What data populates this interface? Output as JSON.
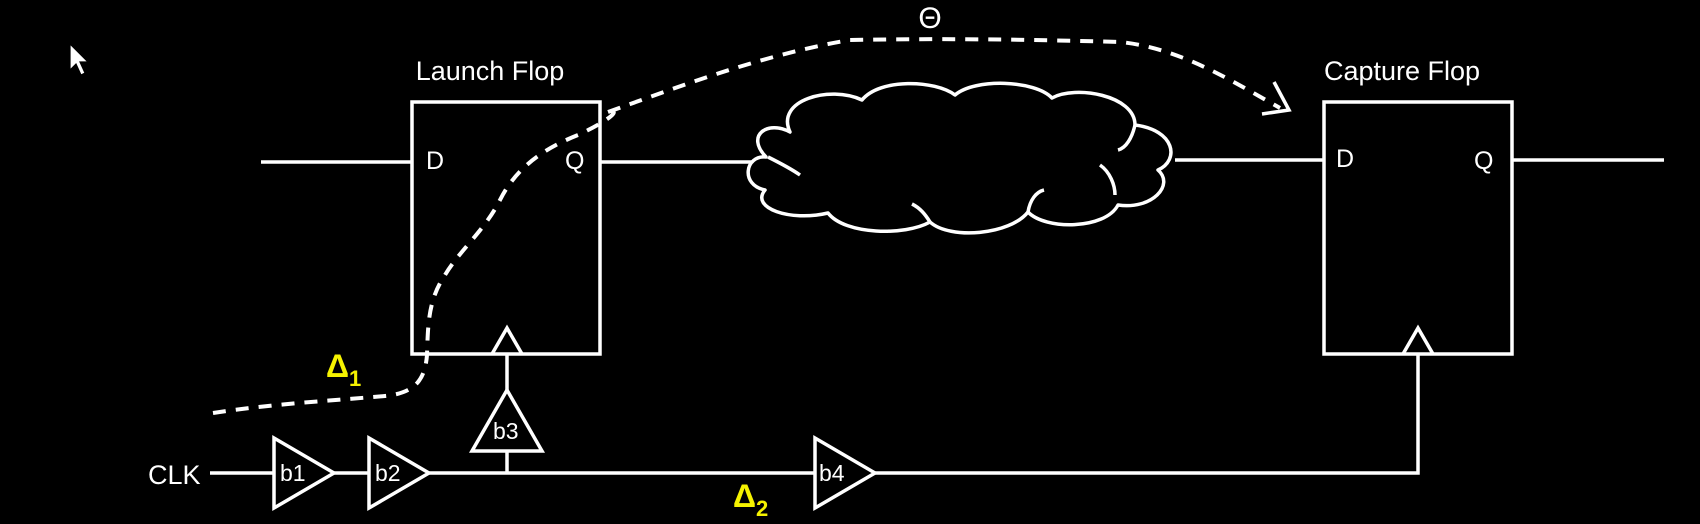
{
  "colors": {
    "background": "#000000",
    "line": "#ffffff",
    "text": "#ffffff",
    "delay_label": "#f5f200"
  },
  "launch_flop": {
    "title": "Launch Flop",
    "d_pin": "D",
    "q_pin": "Q"
  },
  "capture_flop": {
    "title": "Capture Flop",
    "d_pin": "D",
    "q_pin": "Q"
  },
  "clock": {
    "input_label": "CLK"
  },
  "buffers": [
    "b1",
    "b2",
    "b3",
    "b4"
  ],
  "annotations": {
    "path_delay_symbol": "Θ",
    "delta1_symbol": "Δ",
    "delta1_subscript": "1",
    "delta2_symbol": "Δ",
    "delta2_subscript": "2"
  },
  "icons": {
    "cursor": "mouse-pointer-icon",
    "logic_cloud": "combinational-logic-cloud"
  }
}
